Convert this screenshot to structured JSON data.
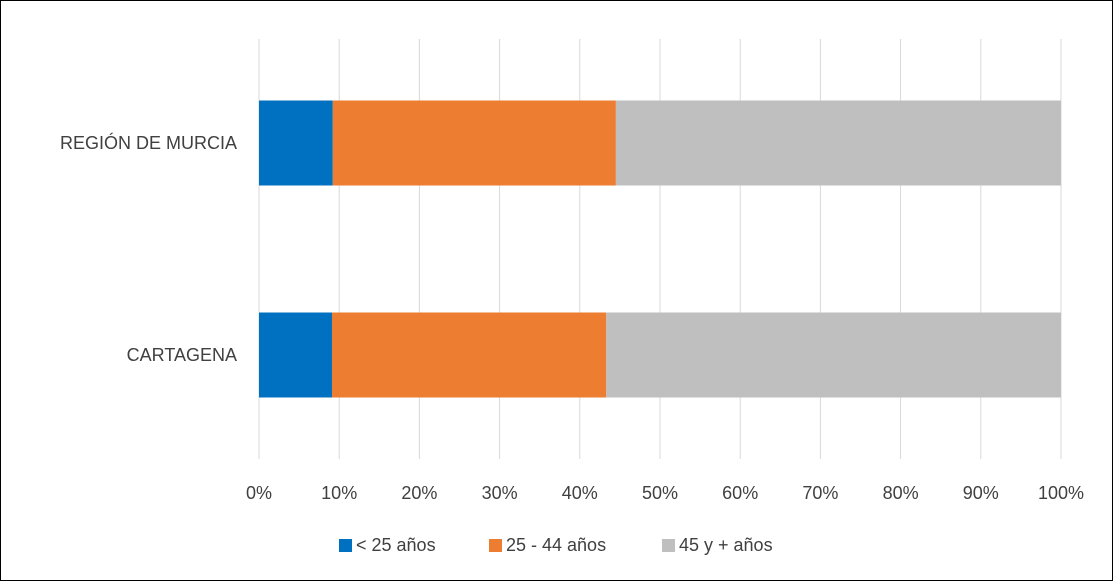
{
  "chart_data": {
    "type": "bar",
    "orientation": "horizontal",
    "stacked": "percent",
    "categories": [
      "REGIÓN DE MURCIA",
      "CARTAGENA"
    ],
    "series": [
      {
        "name": "< 25 años",
        "color": "#0070C0",
        "values": [
          9.2,
          9.1
        ]
      },
      {
        "name": "25 - 44 años",
        "color": "#ED7D31",
        "values": [
          35.3,
          34.2
        ]
      },
      {
        "name": "45 y + años",
        "color": "#BFBFBF",
        "values": [
          55.5,
          56.7
        ]
      }
    ],
    "xlim": [
      0,
      100
    ],
    "xticks": [
      "0%",
      "10%",
      "20%",
      "30%",
      "40%",
      "50%",
      "60%",
      "70%",
      "80%",
      "90%",
      "100%"
    ],
    "grid": "vertical",
    "legend": "bottom"
  }
}
